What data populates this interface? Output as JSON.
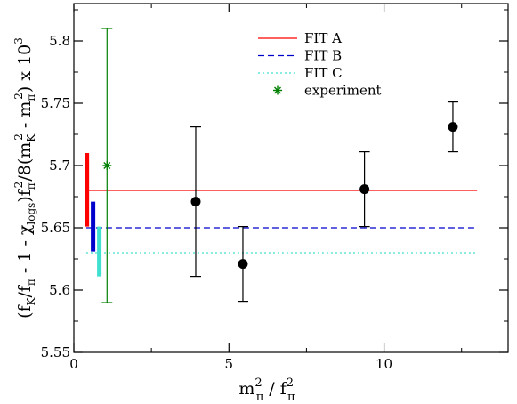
{
  "chart_data": {
    "type": "scatter",
    "title": "",
    "xlim": [
      0,
      14
    ],
    "ylim": [
      5.55,
      5.83
    ],
    "x_ticks": [
      {
        "value": 0,
        "label": "0"
      },
      {
        "value": 5,
        "label": "5"
      },
      {
        "value": 10,
        "label": "10"
      }
    ],
    "y_ticks": [
      {
        "value": 5.55,
        "label": "5.55"
      },
      {
        "value": 5.6,
        "label": "5.6"
      },
      {
        "value": 5.65,
        "label": "5.65"
      },
      {
        "value": 5.7,
        "label": "5.7"
      },
      {
        "value": 5.75,
        "label": "5.75"
      },
      {
        "value": 5.8,
        "label": "5.8"
      }
    ],
    "xlabel": {
      "base": "m",
      "sub1": "π",
      "sup1": "2",
      "mid": " / f",
      "sub2": "π",
      "sup2": "2"
    },
    "ylabel": "(f_K/f_π - 1 - χ_logs) f_π^2/8(m_K^2 - m_π^2)  x 10^3",
    "ylabel_parts": {
      "a": "(f",
      "b": "K",
      "c": "/f",
      "d": "π",
      "e": " - 1 - χ",
      "f": "logs",
      "g": ")f",
      "h": "π",
      "i": "2",
      "j": "/8(m",
      "k": "K",
      "l": "2",
      "m": " - m",
      "n": "π",
      "o": "2",
      "p": ")  x 10",
      "q": "3"
    },
    "grid": false,
    "legend_position": "top-right",
    "data_points": [
      {
        "x": 3.93,
        "y": 5.671,
        "err_low": 5.611,
        "err_high": 5.731
      },
      {
        "x": 5.45,
        "y": 5.621,
        "err_low": 5.591,
        "err_high": 5.651
      },
      {
        "x": 9.37,
        "y": 5.681,
        "err_low": 5.651,
        "err_high": 5.711
      },
      {
        "x": 12.22,
        "y": 5.731,
        "err_low": 5.711,
        "err_high": 5.751
      }
    ],
    "experiment": {
      "x": 1.07,
      "y": 5.7,
      "err_low": 5.59,
      "err_high": 5.81,
      "color": "#008000"
    },
    "fits": [
      {
        "name": "FIT A",
        "value": 5.68,
        "x_start": 0.4,
        "x_end": 13.0,
        "color": "#ff0000",
        "dash": "solid",
        "band": {
          "x": 0.42,
          "low": 5.651,
          "high": 5.71
        }
      },
      {
        "name": "FIT B",
        "value": 5.65,
        "x_start": 0.4,
        "x_end": 13.0,
        "color": "#0000cc",
        "dash": "dashed",
        "band": {
          "x": 0.62,
          "low": 5.631,
          "high": 5.671
        }
      },
      {
        "name": "FIT C",
        "value": 5.63,
        "x_start": 0.4,
        "x_end": 13.0,
        "color": "#40e0d0",
        "dash": "dotted",
        "band": {
          "x": 0.82,
          "low": 5.611,
          "high": 5.651
        }
      }
    ],
    "legend": [
      {
        "label": "FIT A",
        "kind": "solid",
        "color": "#ff0000"
      },
      {
        "label": "FIT B",
        "kind": "dashed",
        "color": "#0000cc"
      },
      {
        "label": "FIT C",
        "kind": "dotted",
        "color": "#40e0d0"
      },
      {
        "label": "experiment",
        "kind": "star",
        "color": "#008000"
      }
    ]
  }
}
